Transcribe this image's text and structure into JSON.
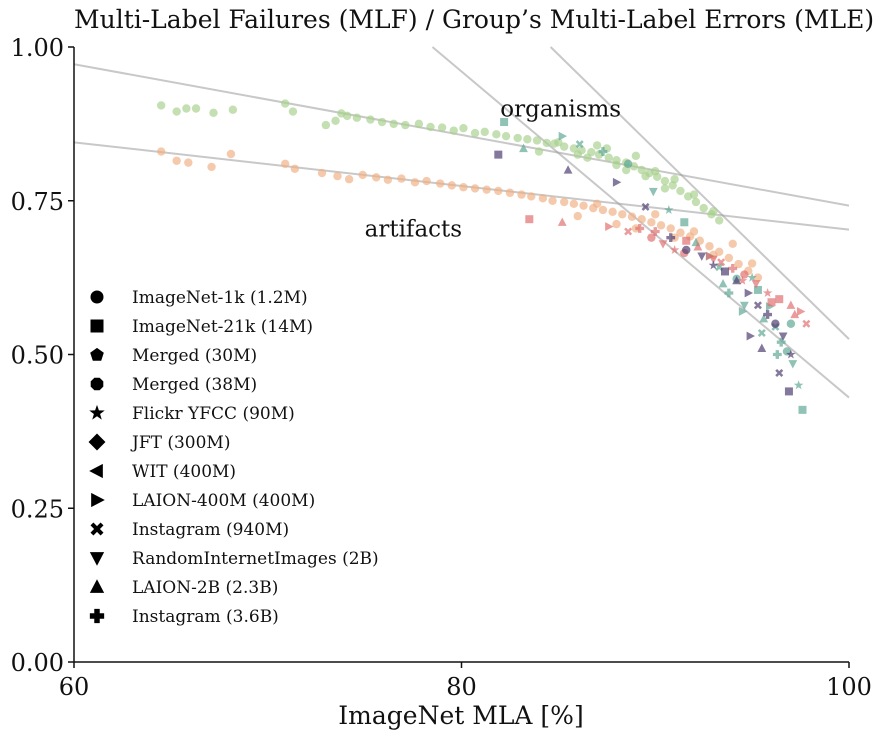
{
  "chart_data": {
    "type": "scatter",
    "title": "Multi-Label Failures (MLF) / Group’s Multi-Label Errors (MLE)",
    "xlabel": "ImageNet MLA [%]",
    "ylabel": "",
    "xlim": [
      60,
      100
    ],
    "ylim": [
      0,
      1
    ],
    "xticks": [
      {
        "value": 60,
        "label": "60"
      },
      {
        "value": 80,
        "label": "80"
      },
      {
        "value": 100,
        "label": "100"
      }
    ],
    "yticks": [
      {
        "value": 0.0,
        "label": "0.00"
      },
      {
        "value": 0.25,
        "label": "0.25"
      },
      {
        "value": 0.5,
        "label": "0.50"
      },
      {
        "value": 0.75,
        "label": "0.75"
      },
      {
        "value": 1.0,
        "label": "1.00"
      }
    ],
    "grid": false,
    "legend_position": "center-left",
    "legend": [
      {
        "marker": "circle",
        "label": "ImageNet-1k (1.2M)"
      },
      {
        "marker": "square",
        "label": "ImageNet-21k (14M)"
      },
      {
        "marker": "pentagon",
        "label": "Merged (30M)"
      },
      {
        "marker": "octagon",
        "label": "Merged (38M)"
      },
      {
        "marker": "star",
        "label": "Flickr YFCC (90M)"
      },
      {
        "marker": "diamond",
        "label": "JFT (300M)"
      },
      {
        "marker": "triangle-left",
        "label": "WIT (400M)"
      },
      {
        "marker": "triangle-right",
        "label": "LAION-400M (400M)"
      },
      {
        "marker": "x",
        "label": "Instagram (940M)"
      },
      {
        "marker": "triangle-down",
        "label": "RandomInternetImages (2B)"
      },
      {
        "marker": "triangle-up",
        "label": "LAION-2B (2.3B)"
      },
      {
        "marker": "plus",
        "label": "Instagram (3.6B)"
      }
    ],
    "annotations": [
      {
        "text": "organisms",
        "x": 82.0,
        "y": 0.9
      },
      {
        "text": "artifacts",
        "x": 75.0,
        "y": 0.705
      }
    ],
    "trend_lines": [
      {
        "group": "organisms",
        "segments": [
          {
            "x": [
              60,
              100
            ],
            "y": [
              0.972,
              0.742
            ]
          },
          {
            "x": [
              78.5,
              100
            ],
            "y": [
              1.0,
              0.43
            ]
          }
        ]
      },
      {
        "group": "artifacts",
        "segments": [
          {
            "x": [
              60,
              100
            ],
            "y": [
              0.845,
              0.703
            ]
          },
          {
            "x": [
              84.6,
              100
            ],
            "y": [
              1.0,
              0.525
            ]
          }
        ]
      }
    ],
    "series": [
      {
        "name": "organisms",
        "color": "#a8d08d",
        "marker": "circle",
        "x": [
          64.5,
          65.3,
          65.8,
          66.3,
          67.2,
          68.2,
          70.9,
          71.3,
          73.0,
          73.5,
          73.8,
          74.1,
          74.6,
          75.3,
          75.9,
          76.5,
          77.1,
          77.8,
          78.4,
          79.0,
          79.6,
          80.1,
          80.7,
          81.2,
          81.8,
          82.3,
          82.9,
          83.4,
          83.9,
          84.4,
          84.8,
          85.3,
          85.8,
          86.2,
          86.7,
          87.1,
          87.6,
          88.0,
          88.5,
          88.9,
          89.3,
          89.7,
          90.1,
          90.5,
          90.9,
          91.3,
          91.7,
          92.1,
          92.5,
          92.9,
          93.3,
          84.0,
          85.0,
          86.0,
          87.0,
          88.0,
          89.0,
          90.0,
          91.0,
          92.0,
          93.0,
          86.5,
          87.5,
          88.5,
          89.5,
          90.5
        ],
        "y": [
          0.905,
          0.895,
          0.9,
          0.9,
          0.893,
          0.898,
          0.908,
          0.895,
          0.873,
          0.88,
          0.892,
          0.888,
          0.885,
          0.882,
          0.878,
          0.875,
          0.873,
          0.875,
          0.87,
          0.869,
          0.864,
          0.868,
          0.86,
          0.862,
          0.858,
          0.855,
          0.852,
          0.85,
          0.848,
          0.844,
          0.843,
          0.838,
          0.835,
          0.832,
          0.829,
          0.825,
          0.82,
          0.816,
          0.812,
          0.806,
          0.8,
          0.795,
          0.789,
          0.782,
          0.775,
          0.766,
          0.757,
          0.748,
          0.738,
          0.728,
          0.718,
          0.83,
          0.845,
          0.825,
          0.84,
          0.808,
          0.823,
          0.798,
          0.785,
          0.76,
          0.733,
          0.82,
          0.835,
          0.8,
          0.79,
          0.77
        ]
      },
      {
        "name": "artifacts",
        "color": "#f0b184",
        "marker": "circle",
        "x": [
          64.5,
          65.3,
          65.9,
          67.1,
          68.1,
          70.9,
          71.4,
          72.8,
          73.6,
          74.2,
          74.9,
          75.6,
          76.2,
          76.9,
          77.6,
          78.2,
          78.9,
          79.5,
          80.1,
          80.7,
          81.3,
          81.9,
          82.5,
          83.1,
          83.6,
          84.2,
          84.7,
          85.3,
          85.8,
          86.3,
          86.8,
          87.3,
          87.8,
          88.3,
          88.8,
          89.3,
          89.8,
          90.3,
          90.8,
          91.3,
          91.8,
          92.3,
          92.8,
          93.3,
          93.8,
          94.3,
          94.8,
          95.3,
          86.0,
          87.0,
          88.0,
          89.0,
          90.0,
          91.0,
          92.0,
          93.0,
          94.0,
          95.0
        ],
        "y": [
          0.83,
          0.815,
          0.812,
          0.805,
          0.826,
          0.81,
          0.802,
          0.795,
          0.79,
          0.785,
          0.792,
          0.788,
          0.784,
          0.786,
          0.78,
          0.782,
          0.778,
          0.775,
          0.772,
          0.77,
          0.768,
          0.766,
          0.763,
          0.76,
          0.757,
          0.754,
          0.75,
          0.748,
          0.745,
          0.742,
          0.738,
          0.735,
          0.732,
          0.728,
          0.724,
          0.72,
          0.715,
          0.71,
          0.705,
          0.698,
          0.692,
          0.685,
          0.676,
          0.667,
          0.657,
          0.647,
          0.636,
          0.625,
          0.725,
          0.745,
          0.712,
          0.705,
          0.728,
          0.69,
          0.7,
          0.662,
          0.68,
          0.648
        ]
      },
      {
        "name": "",
        "color": "#5ba592",
        "marker": "mixed",
        "x": [
          82.2,
          83.2,
          85.2,
          86.1,
          87.3,
          88.6,
          89.9,
          90.7,
          91.5,
          92.1,
          92.8,
          93.3,
          93.8,
          94.2,
          94.6,
          95.0,
          95.3,
          95.6,
          95.9,
          96.2,
          96.5,
          96.8,
          97.1,
          97.4,
          97.6,
          93.5,
          94.5,
          95.5,
          96.3,
          97.0
        ],
        "y": [
          0.878,
          0.835,
          0.855,
          0.842,
          0.83,
          0.81,
          0.765,
          0.735,
          0.715,
          0.682,
          0.66,
          0.642,
          0.6,
          0.623,
          0.58,
          0.625,
          0.605,
          0.558,
          0.578,
          0.545,
          0.52,
          0.505,
          0.485,
          0.45,
          0.41,
          0.615,
          0.57,
          0.535,
          0.5,
          0.55
        ]
      },
      {
        "name": "",
        "color": "#e06c6c",
        "marker": "mixed",
        "x": [
          83.5,
          85.2,
          87.6,
          88.6,
          89.2,
          89.8,
          90.4,
          91.0,
          91.6,
          92.2,
          92.8,
          93.4,
          94.0,
          94.6,
          95.2,
          95.8,
          96.4,
          97.0,
          97.5,
          97.8,
          90.0,
          91.5,
          93.0,
          94.5,
          96.0,
          97.2
        ],
        "y": [
          0.72,
          0.715,
          0.708,
          0.7,
          0.705,
          0.69,
          0.68,
          0.67,
          0.685,
          0.675,
          0.66,
          0.65,
          0.64,
          0.63,
          0.615,
          0.6,
          0.59,
          0.58,
          0.57,
          0.55,
          0.7,
          0.665,
          0.655,
          0.62,
          0.585,
          0.565
        ]
      },
      {
        "name": "",
        "color": "#4a3a6e",
        "marker": "mixed",
        "x": [
          81.9,
          85.5,
          88.0,
          89.5,
          90.8,
          91.6,
          92.4,
          93.0,
          93.6,
          94.2,
          94.8,
          95.3,
          95.8,
          96.2,
          96.6,
          97.0,
          96.9,
          95.5,
          94.9,
          96.4
        ],
        "y": [
          0.825,
          0.8,
          0.78,
          0.74,
          0.69,
          0.67,
          0.66,
          0.645,
          0.635,
          0.62,
          0.6,
          0.58,
          0.565,
          0.55,
          0.53,
          0.5,
          0.44,
          0.51,
          0.53,
          0.47
        ]
      }
    ],
    "background_color": "#ffffff"
  }
}
